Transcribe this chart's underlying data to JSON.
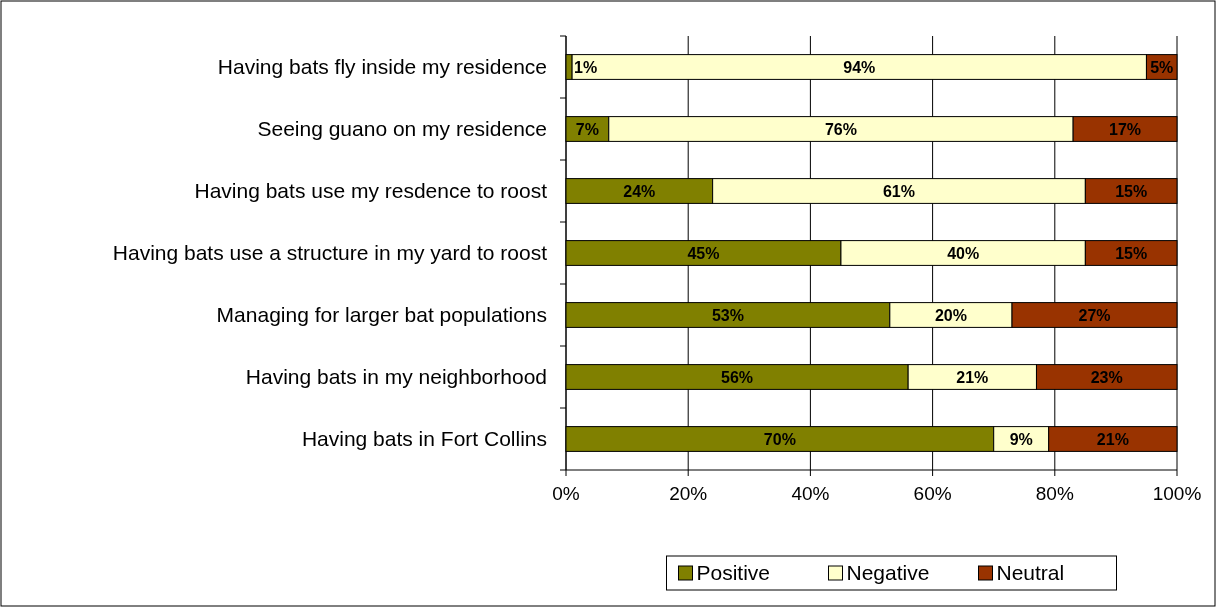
{
  "chart_data": {
    "type": "bar",
    "orientation": "horizontal",
    "stacked": true,
    "categories": [
      "Having bats fly inside my residence",
      "Seeing guano on my residence",
      "Having bats use my resdence to roost",
      "Having bats use a structure in my yard to roost",
      "Managing for larger bat populations",
      "Having bats in my neighborhood",
      "Having bats in Fort Collins"
    ],
    "series": [
      {
        "name": "Positive",
        "color": "#808000",
        "values": [
          1,
          7,
          24,
          45,
          53,
          56,
          70
        ],
        "value_labels": [
          "1%",
          "7%",
          "24%",
          "45%",
          "53%",
          "56%",
          "70%"
        ]
      },
      {
        "name": "Negative",
        "color": "#ffffcc",
        "values": [
          94,
          76,
          61,
          40,
          20,
          21,
          9
        ],
        "value_labels": [
          "94%",
          "76%",
          "61%",
          "40%",
          "20%",
          "21%",
          "9%"
        ]
      },
      {
        "name": "Neutral",
        "color": "#993300",
        "values": [
          5,
          17,
          15,
          15,
          27,
          23,
          21
        ],
        "value_labels": [
          "5%",
          "17%",
          "15%",
          "15%",
          "27%",
          "23%",
          "21%"
        ]
      }
    ],
    "xlim": [
      0,
      100
    ],
    "xticks": [
      {
        "value": 0,
        "label": "0%"
      },
      {
        "value": 20,
        "label": "20%"
      },
      {
        "value": 40,
        "label": "40%"
      },
      {
        "value": 60,
        "label": "60%"
      },
      {
        "value": 80,
        "label": "80%"
      },
      {
        "value": 100,
        "label": "100%"
      }
    ],
    "grid": "x",
    "legend": "bottom"
  }
}
